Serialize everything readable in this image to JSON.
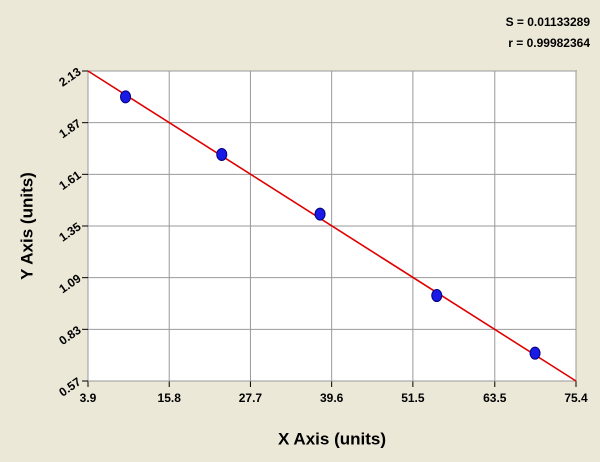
{
  "chart_data": {
    "type": "scatter",
    "x_label": "X Axis (units)",
    "y_label": "Y Axis (units)",
    "annotations": [
      "S = 0.01133289",
      "r = 0.99982364"
    ],
    "series": [
      {
        "color": "#1a1ae6",
        "x": [
          9.4,
          23.5,
          37.9,
          55.0,
          69.4
        ],
        "values": [
          2.0,
          1.71,
          1.41,
          1.0,
          0.71
        ]
      }
    ],
    "fit": {
      "color": "#e00000",
      "x": [
        3.9,
        75.4
      ],
      "values": [
        2.13,
        0.57
      ]
    },
    "xlim": [
      3.9,
      75.4
    ],
    "ylim": [
      0.57,
      2.13
    ],
    "xticks": [
      3.9,
      15.8,
      27.7,
      39.6,
      51.5,
      63.5,
      75.4
    ],
    "yticks": [
      0.57,
      0.83,
      1.09,
      1.35,
      1.61,
      1.87,
      2.13
    ],
    "grid": true
  }
}
